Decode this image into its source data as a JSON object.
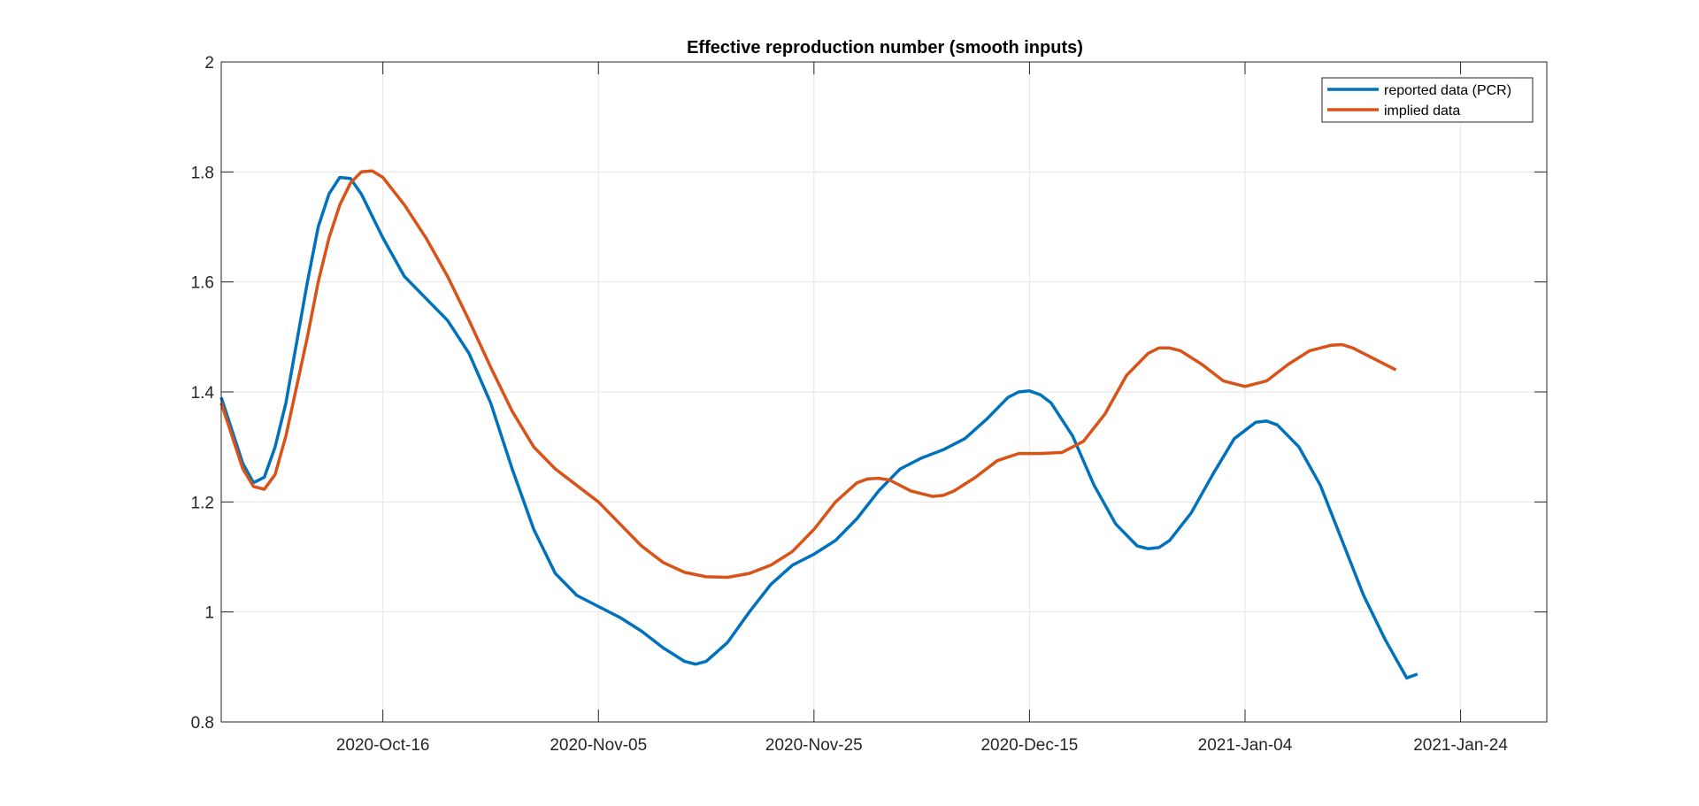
{
  "chart_data": {
    "type": "line",
    "title": "Effective reproduction number (smooth inputs)",
    "xlabel": "",
    "ylabel": "",
    "x_axis": {
      "type": "date",
      "range": [
        "2020-10-01",
        "2021-02-01"
      ],
      "ticks": [
        {
          "date": "2020-10-16",
          "label": "2020-Oct-16"
        },
        {
          "date": "2020-11-05",
          "label": "2020-Nov-05"
        },
        {
          "date": "2020-11-25",
          "label": "2020-Nov-25"
        },
        {
          "date": "2020-12-15",
          "label": "2020-Dec-15"
        },
        {
          "date": "2021-01-04",
          "label": "2021-Jan-04"
        },
        {
          "date": "2021-01-24",
          "label": "2021-Jan-24"
        }
      ]
    },
    "y_axis": {
      "range": [
        0.8,
        2.0
      ],
      "ticks": [
        {
          "value": 0.8,
          "label": "0.8"
        },
        {
          "value": 1.0,
          "label": "1"
        },
        {
          "value": 1.2,
          "label": "1.2"
        },
        {
          "value": 1.4,
          "label": "1.4"
        },
        {
          "value": 1.6,
          "label": "1.6"
        },
        {
          "value": 1.8,
          "label": "1.8"
        },
        {
          "value": 2.0,
          "label": "2"
        }
      ]
    },
    "grid": true,
    "legend_position": "top-right",
    "series": [
      {
        "name": "reported data (PCR)",
        "color": "#0072BD",
        "points": [
          [
            "2020-10-01",
            1.39
          ],
          [
            "2020-10-03",
            1.27
          ],
          [
            "2020-10-04",
            1.235
          ],
          [
            "2020-10-05",
            1.245
          ],
          [
            "2020-10-06",
            1.3
          ],
          [
            "2020-10-07",
            1.38
          ],
          [
            "2020-10-09",
            1.6
          ],
          [
            "2020-10-10",
            1.7
          ],
          [
            "2020-10-11",
            1.76
          ],
          [
            "2020-10-12",
            1.79
          ],
          [
            "2020-10-13",
            1.788
          ],
          [
            "2020-10-14",
            1.76
          ],
          [
            "2020-10-16",
            1.68
          ],
          [
            "2020-10-18",
            1.61
          ],
          [
            "2020-10-20",
            1.57
          ],
          [
            "2020-10-22",
            1.53
          ],
          [
            "2020-10-24",
            1.47
          ],
          [
            "2020-10-26",
            1.38
          ],
          [
            "2020-10-28",
            1.26
          ],
          [
            "2020-10-30",
            1.15
          ],
          [
            "2020-11-01",
            1.07
          ],
          [
            "2020-11-03",
            1.03
          ],
          [
            "2020-11-05",
            1.01
          ],
          [
            "2020-11-07",
            0.99
          ],
          [
            "2020-11-09",
            0.965
          ],
          [
            "2020-11-11",
            0.935
          ],
          [
            "2020-11-13",
            0.91
          ],
          [
            "2020-11-14",
            0.905
          ],
          [
            "2020-11-15",
            0.91
          ],
          [
            "2020-11-17",
            0.945
          ],
          [
            "2020-11-19",
            1.0
          ],
          [
            "2020-11-21",
            1.05
          ],
          [
            "2020-11-23",
            1.085
          ],
          [
            "2020-11-25",
            1.105
          ],
          [
            "2020-11-27",
            1.13
          ],
          [
            "2020-11-29",
            1.17
          ],
          [
            "2020-12-01",
            1.22
          ],
          [
            "2020-12-03",
            1.26
          ],
          [
            "2020-12-05",
            1.28
          ],
          [
            "2020-12-07",
            1.295
          ],
          [
            "2020-12-09",
            1.315
          ],
          [
            "2020-12-11",
            1.35
          ],
          [
            "2020-12-13",
            1.39
          ],
          [
            "2020-12-14",
            1.4
          ],
          [
            "2020-12-15",
            1.402
          ],
          [
            "2020-12-16",
            1.395
          ],
          [
            "2020-12-17",
            1.38
          ],
          [
            "2020-12-19",
            1.32
          ],
          [
            "2020-12-21",
            1.23
          ],
          [
            "2020-12-23",
            1.16
          ],
          [
            "2020-12-25",
            1.12
          ],
          [
            "2020-12-26",
            1.115
          ],
          [
            "2020-12-27",
            1.117
          ],
          [
            "2020-12-28",
            1.13
          ],
          [
            "2020-12-30",
            1.18
          ],
          [
            "2021-01-01",
            1.25
          ],
          [
            "2021-01-03",
            1.315
          ],
          [
            "2021-01-05",
            1.345
          ],
          [
            "2021-01-06",
            1.347
          ],
          [
            "2021-01-07",
            1.34
          ],
          [
            "2021-01-09",
            1.3
          ],
          [
            "2021-01-11",
            1.23
          ],
          [
            "2021-01-13",
            1.13
          ],
          [
            "2021-01-15",
            1.03
          ],
          [
            "2021-01-17",
            0.95
          ],
          [
            "2021-01-19",
            0.88
          ],
          [
            "2021-01-20",
            0.887
          ]
        ]
      },
      {
        "name": "implied data",
        "color": "#D95319",
        "points": [
          [
            "2020-10-01",
            1.38
          ],
          [
            "2020-10-03",
            1.26
          ],
          [
            "2020-10-04",
            1.228
          ],
          [
            "2020-10-05",
            1.223
          ],
          [
            "2020-10-06",
            1.25
          ],
          [
            "2020-10-07",
            1.32
          ],
          [
            "2020-10-09",
            1.5
          ],
          [
            "2020-10-10",
            1.6
          ],
          [
            "2020-10-11",
            1.68
          ],
          [
            "2020-10-12",
            1.74
          ],
          [
            "2020-10-13",
            1.78
          ],
          [
            "2020-10-14",
            1.8
          ],
          [
            "2020-10-15",
            1.802
          ],
          [
            "2020-10-16",
            1.79
          ],
          [
            "2020-10-18",
            1.74
          ],
          [
            "2020-10-20",
            1.68
          ],
          [
            "2020-10-22",
            1.61
          ],
          [
            "2020-10-24",
            1.53
          ],
          [
            "2020-10-26",
            1.445
          ],
          [
            "2020-10-28",
            1.365
          ],
          [
            "2020-10-30",
            1.3
          ],
          [
            "2020-11-01",
            1.26
          ],
          [
            "2020-11-03",
            1.23
          ],
          [
            "2020-11-05",
            1.2
          ],
          [
            "2020-11-07",
            1.16
          ],
          [
            "2020-11-09",
            1.12
          ],
          [
            "2020-11-11",
            1.09
          ],
          [
            "2020-11-13",
            1.072
          ],
          [
            "2020-11-15",
            1.064
          ],
          [
            "2020-11-17",
            1.063
          ],
          [
            "2020-11-19",
            1.07
          ],
          [
            "2020-11-21",
            1.085
          ],
          [
            "2020-11-23",
            1.11
          ],
          [
            "2020-11-25",
            1.15
          ],
          [
            "2020-11-27",
            1.2
          ],
          [
            "2020-11-29",
            1.235
          ],
          [
            "2020-11-30",
            1.242
          ],
          [
            "2020-12-01",
            1.243
          ],
          [
            "2020-12-02",
            1.24
          ],
          [
            "2020-12-04",
            1.22
          ],
          [
            "2020-12-06",
            1.21
          ],
          [
            "2020-12-07",
            1.212
          ],
          [
            "2020-12-08",
            1.22
          ],
          [
            "2020-12-10",
            1.245
          ],
          [
            "2020-12-12",
            1.275
          ],
          [
            "2020-12-14",
            1.288
          ],
          [
            "2020-12-16",
            1.288
          ],
          [
            "2020-12-18",
            1.29
          ],
          [
            "2020-12-20",
            1.31
          ],
          [
            "2020-12-22",
            1.36
          ],
          [
            "2020-12-24",
            1.43
          ],
          [
            "2020-12-26",
            1.47
          ],
          [
            "2020-12-27",
            1.48
          ],
          [
            "2020-12-28",
            1.48
          ],
          [
            "2020-12-29",
            1.475
          ],
          [
            "2020-12-31",
            1.45
          ],
          [
            "2021-01-02",
            1.42
          ],
          [
            "2021-01-04",
            1.41
          ],
          [
            "2021-01-06",
            1.42
          ],
          [
            "2021-01-08",
            1.45
          ],
          [
            "2021-01-10",
            1.475
          ],
          [
            "2021-01-12",
            1.485
          ],
          [
            "2021-01-13",
            1.486
          ],
          [
            "2021-01-14",
            1.48
          ],
          [
            "2021-01-16",
            1.46
          ],
          [
            "2021-01-18",
            1.44
          ]
        ]
      }
    ]
  }
}
